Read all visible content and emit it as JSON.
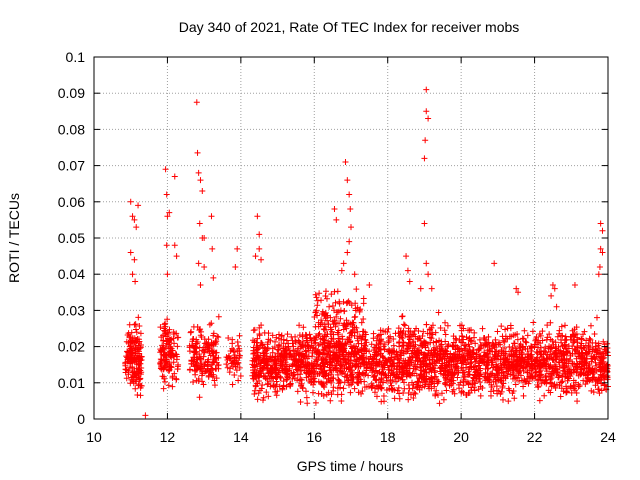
{
  "chart_data": {
    "type": "scatter",
    "title": "Day 340 of 2021, Rate Of TEC Index for receiver mobs",
    "xlabel": "GPS time / hours",
    "ylabel": "ROTI / TECUs",
    "xlim": [
      10,
      24
    ],
    "ylim": [
      0,
      0.1
    ],
    "xticks": [
      10,
      12,
      14,
      16,
      18,
      20,
      22,
      24
    ],
    "xtick_labels": [
      "10",
      "12",
      "14",
      "16",
      "18",
      "20",
      "22",
      "24"
    ],
    "yticks": [
      0,
      0.01,
      0.02,
      0.03,
      0.04,
      0.05,
      0.06,
      0.07,
      0.08,
      0.09,
      0.1
    ],
    "ytick_labels": [
      "0",
      "0.01",
      "0.02",
      "0.03",
      "0.04",
      "0.05",
      "0.06",
      "0.07",
      "0.08",
      "0.09",
      "0.1"
    ],
    "grid": true,
    "marker": "+",
    "color": "#ff0000",
    "series": [
      {
        "name": "ROTI",
        "clusters": [
          {
            "x_range": [
              10.85,
              11.3
            ],
            "y_range": [
              0.003,
              0.03
            ],
            "count": 160
          },
          {
            "x_range": [
              11.8,
              12.3
            ],
            "y_range": [
              0.006,
              0.03
            ],
            "count": 130
          },
          {
            "x_range": [
              12.6,
              13.4
            ],
            "y_range": [
              0.005,
              0.03
            ],
            "count": 170
          },
          {
            "x_range": [
              13.6,
              14.0
            ],
            "y_range": [
              0.007,
              0.025
            ],
            "count": 50
          },
          {
            "x_range": [
              14.3,
              24.0
            ],
            "y_range": [
              0.003,
              0.028
            ],
            "count": 2600
          },
          {
            "x_range": [
              16.0,
              17.4
            ],
            "y_range": [
              0.015,
              0.04
            ],
            "count": 140
          },
          {
            "x_range": [
              18.3,
              19.5
            ],
            "y_range": [
              0.01,
              0.033
            ],
            "count": 60
          }
        ],
        "points": [
          {
            "x": 11.0,
            "y": 0.06
          },
          {
            "x": 11.05,
            "y": 0.056
          },
          {
            "x": 11.1,
            "y": 0.055
          },
          {
            "x": 11.15,
            "y": 0.053
          },
          {
            "x": 11.0,
            "y": 0.046
          },
          {
            "x": 11.1,
            "y": 0.044
          },
          {
            "x": 11.05,
            "y": 0.04
          },
          {
            "x": 11.12,
            "y": 0.038
          },
          {
            "x": 11.2,
            "y": 0.059
          },
          {
            "x": 11.95,
            "y": 0.069
          },
          {
            "x": 12.2,
            "y": 0.067
          },
          {
            "x": 11.98,
            "y": 0.062
          },
          {
            "x": 12.0,
            "y": 0.056
          },
          {
            "x": 12.05,
            "y": 0.057
          },
          {
            "x": 11.98,
            "y": 0.048
          },
          {
            "x": 12.2,
            "y": 0.048
          },
          {
            "x": 12.25,
            "y": 0.045
          },
          {
            "x": 12.0,
            "y": 0.04
          },
          {
            "x": 12.8,
            "y": 0.0875
          },
          {
            "x": 12.82,
            "y": 0.0735
          },
          {
            "x": 12.85,
            "y": 0.068
          },
          {
            "x": 12.9,
            "y": 0.066
          },
          {
            "x": 12.95,
            "y": 0.063
          },
          {
            "x": 12.88,
            "y": 0.054
          },
          {
            "x": 13.0,
            "y": 0.05
          },
          {
            "x": 12.95,
            "y": 0.05
          },
          {
            "x": 13.2,
            "y": 0.056
          },
          {
            "x": 13.22,
            "y": 0.047
          },
          {
            "x": 12.85,
            "y": 0.043
          },
          {
            "x": 13.0,
            "y": 0.042
          },
          {
            "x": 13.25,
            "y": 0.039
          },
          {
            "x": 12.9,
            "y": 0.037
          },
          {
            "x": 13.9,
            "y": 0.047
          },
          {
            "x": 13.85,
            "y": 0.042
          },
          {
            "x": 14.45,
            "y": 0.056
          },
          {
            "x": 14.5,
            "y": 0.051
          },
          {
            "x": 14.5,
            "y": 0.047
          },
          {
            "x": 14.55,
            "y": 0.044
          },
          {
            "x": 14.4,
            "y": 0.045
          },
          {
            "x": 16.55,
            "y": 0.058
          },
          {
            "x": 16.6,
            "y": 0.055
          },
          {
            "x": 16.85,
            "y": 0.071
          },
          {
            "x": 16.9,
            "y": 0.066
          },
          {
            "x": 16.95,
            "y": 0.062
          },
          {
            "x": 16.98,
            "y": 0.058
          },
          {
            "x": 17.0,
            "y": 0.053
          },
          {
            "x": 16.95,
            "y": 0.049
          },
          {
            "x": 16.9,
            "y": 0.046
          },
          {
            "x": 16.8,
            "y": 0.043
          },
          {
            "x": 16.75,
            "y": 0.041
          },
          {
            "x": 17.1,
            "y": 0.04
          },
          {
            "x": 17.5,
            "y": 0.037
          },
          {
            "x": 18.5,
            "y": 0.045
          },
          {
            "x": 18.55,
            "y": 0.041
          },
          {
            "x": 18.6,
            "y": 0.038
          },
          {
            "x": 18.9,
            "y": 0.036
          },
          {
            "x": 19.05,
            "y": 0.091
          },
          {
            "x": 19.05,
            "y": 0.085
          },
          {
            "x": 19.1,
            "y": 0.083
          },
          {
            "x": 19.02,
            "y": 0.077
          },
          {
            "x": 19.0,
            "y": 0.072
          },
          {
            "x": 19.0,
            "y": 0.054
          },
          {
            "x": 19.05,
            "y": 0.043
          },
          {
            "x": 19.1,
            "y": 0.04
          },
          {
            "x": 19.2,
            "y": 0.036
          },
          {
            "x": 20.9,
            "y": 0.043
          },
          {
            "x": 21.5,
            "y": 0.036
          },
          {
            "x": 21.55,
            "y": 0.035
          },
          {
            "x": 22.5,
            "y": 0.037
          },
          {
            "x": 22.55,
            "y": 0.036
          },
          {
            "x": 22.45,
            "y": 0.034
          },
          {
            "x": 22.6,
            "y": 0.031
          },
          {
            "x": 23.1,
            "y": 0.037
          },
          {
            "x": 23.8,
            "y": 0.054
          },
          {
            "x": 23.85,
            "y": 0.052
          },
          {
            "x": 23.8,
            "y": 0.047
          },
          {
            "x": 23.78,
            "y": 0.042
          },
          {
            "x": 23.75,
            "y": 0.04
          },
          {
            "x": 23.85,
            "y": 0.046
          },
          {
            "x": 23.7,
            "y": 0.028
          },
          {
            "x": 11.4,
            "y": 0.001
          }
        ]
      }
    ]
  }
}
